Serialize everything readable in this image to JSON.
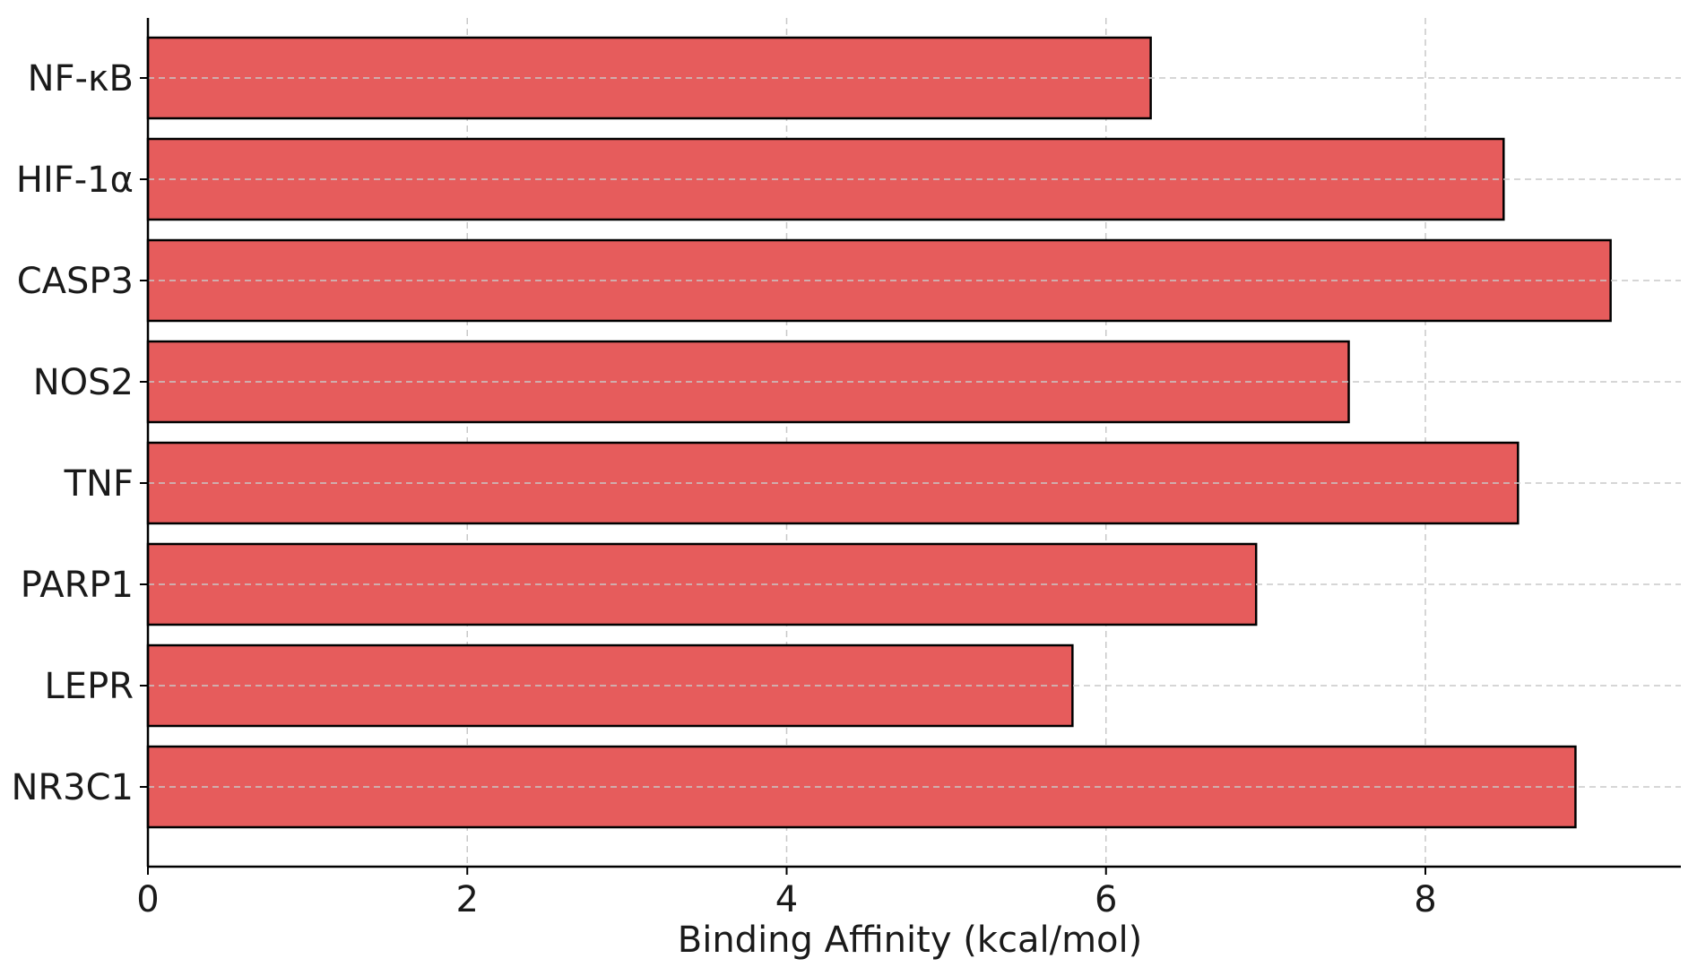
{
  "chart_data": {
    "type": "bar",
    "orientation": "horizontal",
    "title": "",
    "xlabel": "Binding Affinity (kcal/mol)",
    "ylabel": "",
    "categories": [
      "NF-κB",
      "HIF-1α",
      "CASP3",
      "NOS2",
      "TNF",
      "PARP1",
      "LEPR",
      "NR3C1"
    ],
    "values": [
      6.28,
      8.49,
      9.16,
      7.52,
      8.58,
      6.94,
      5.79,
      8.94
    ],
    "xlim": [
      0,
      9.6
    ],
    "xticks": [
      0,
      2,
      4,
      6,
      8
    ],
    "grid": true,
    "bar_color": "#e65c5c",
    "edge_color": "#000000",
    "grid_color": "#c8c8c8"
  }
}
